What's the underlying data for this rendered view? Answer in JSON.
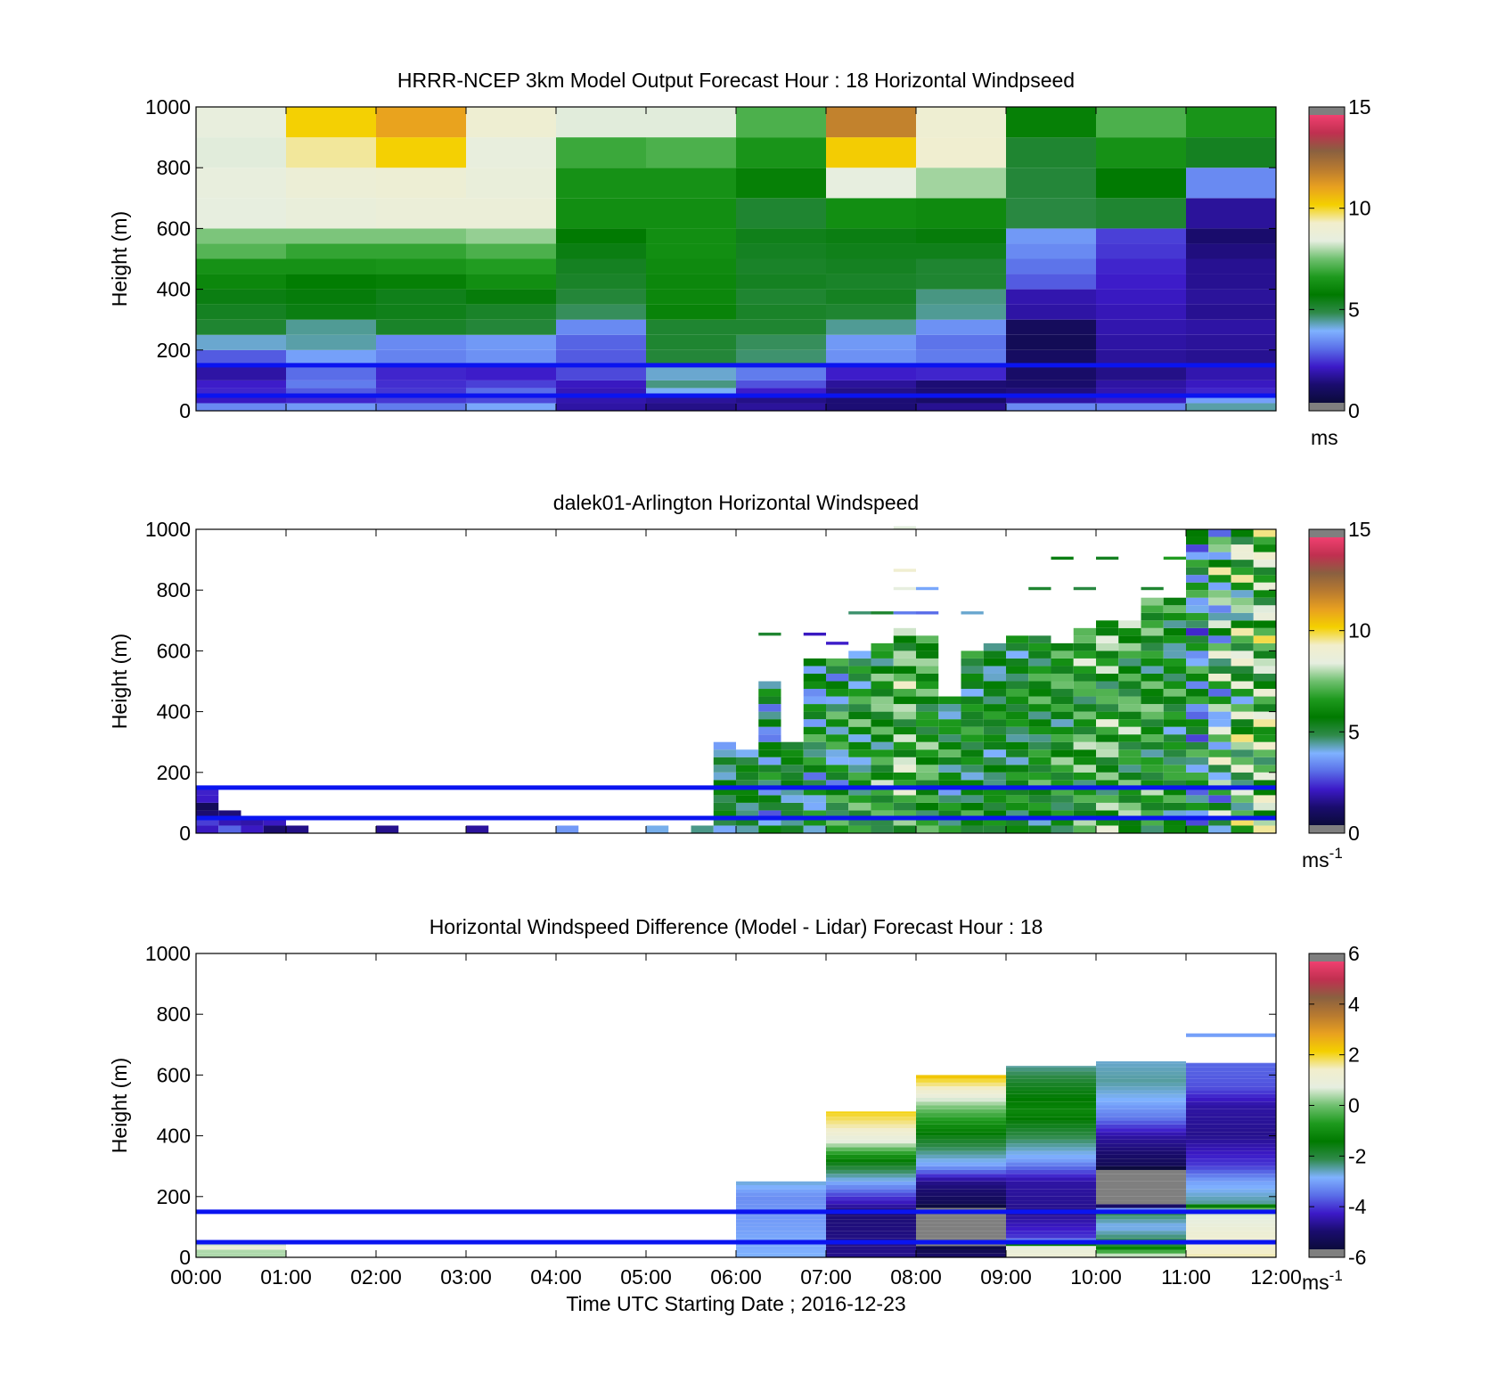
{
  "colors": {
    "reference_line": "#0a14f0",
    "frame": "#000000",
    "cbar_stops": [
      "#7f7f7f",
      "#0b0b3b",
      "#1a0c6e",
      "#3c1ac8",
      "#5a6ee8",
      "#7fb2ff",
      "#2f8a4a",
      "#007a00",
      "#1e9a1e",
      "#6fc06f",
      "#e6eee0",
      "#f2eecc",
      "#f4d000",
      "#e8a020",
      "#b87a30",
      "#8a6040",
      "#c03050",
      "#f04070",
      "#7f7f7f"
    ]
  },
  "chart_data": [
    {
      "type": "heatmap",
      "title": "HRRR-NCEP 3km Model Output   Forecast Hour : 18 Horizontal Windpseed",
      "ylabel": "Height (m)",
      "xlabel": "",
      "ylim": [
        0,
        1000
      ],
      "yticks": [
        "0",
        "200",
        "400",
        "600",
        "800",
        "1000"
      ],
      "xlim": [
        0,
        12
      ],
      "xticks": [],
      "colorbar": {
        "min": 0,
        "max": 15,
        "ticks": [
          "0",
          "5",
          "10",
          "15"
        ],
        "unit": "ms"
      },
      "reference_lines_m": [
        50,
        150
      ],
      "x_hours": [
        0,
        1,
        2,
        3,
        4,
        5,
        6,
        7,
        8,
        9,
        10,
        11
      ],
      "heights_m": [
        0,
        25,
        50,
        75,
        100,
        150,
        200,
        250,
        300,
        350,
        400,
        450,
        500,
        550,
        600,
        700,
        800,
        900,
        1000
      ],
      "values": [
        [
          3.2,
          3.4,
          3.0,
          3.6,
          1.5,
          1.2,
          1.4,
          1.0,
          1.3,
          3.2,
          3.1,
          4.2
        ],
        [
          1.8,
          2.0,
          2.2,
          2.4,
          1.6,
          1.4,
          1.2,
          1.0,
          0.8,
          1.5,
          1.8,
          3.5
        ],
        [
          2.0,
          2.6,
          2.2,
          2.8,
          1.7,
          3.8,
          1.9,
          1.2,
          1.0,
          1.1,
          1.6,
          2.0
        ],
        [
          1.9,
          3.0,
          2.1,
          2.3,
          1.8,
          4.4,
          2.5,
          1.4,
          1.0,
          0.9,
          1.5,
          1.8
        ],
        [
          1.5,
          2.8,
          2.0,
          1.9,
          2.4,
          4.0,
          3.0,
          1.9,
          2.0,
          0.8,
          1.2,
          1.6
        ],
        [
          2.6,
          3.5,
          3.1,
          3.3,
          2.6,
          4.9,
          4.5,
          3.3,
          3.0,
          0.7,
          1.4,
          1.3
        ],
        [
          4.0,
          4.2,
          3.2,
          3.4,
          2.7,
          5.0,
          4.6,
          3.4,
          2.9,
          0.5,
          1.5,
          1.4
        ],
        [
          5.0,
          4.3,
          5.1,
          4.9,
          3.2,
          5.0,
          5.0,
          4.3,
          3.3,
          0.6,
          1.6,
          1.5
        ],
        [
          5.2,
          5.4,
          5.3,
          5.1,
          4.6,
          5.9,
          5.1,
          5.0,
          4.3,
          1.5,
          1.7,
          1.3
        ],
        [
          5.4,
          5.5,
          5.3,
          5.5,
          4.9,
          6.0,
          5.0,
          5.2,
          4.4,
          1.6,
          1.8,
          1.4
        ],
        [
          6.0,
          5.7,
          5.8,
          6.2,
          5.1,
          6.0,
          5.2,
          5.1,
          5.0,
          2.6,
          1.9,
          1.3
        ],
        [
          6.3,
          6.3,
          6.4,
          6.6,
          5.2,
          6.1,
          5.1,
          5.2,
          5.0,
          2.9,
          2.0,
          1.3
        ],
        [
          7.2,
          6.8,
          6.8,
          7.1,
          5.4,
          6.2,
          5.2,
          5.3,
          5.3,
          3.2,
          2.2,
          1.1
        ],
        [
          7.6,
          7.6,
          7.6,
          7.8,
          5.6,
          6.2,
          5.3,
          5.4,
          5.5,
          3.4,
          2.3,
          0.9
        ],
        [
          8.5,
          8.7,
          8.8,
          8.8,
          6.2,
          6.2,
          5.0,
          6.2,
          6.1,
          4.8,
          5.0,
          1.4
        ],
        [
          8.6,
          8.9,
          9.0,
          8.7,
          6.3,
          6.3,
          5.8,
          8.5,
          7.9,
          4.9,
          5.6,
          3.2
        ],
        [
          8.4,
          9.6,
          10.3,
          8.6,
          6.9,
          7.1,
          6.4,
          10.4,
          9.2,
          5.0,
          6.3,
          5.2
        ],
        [
          8.6,
          10.3,
          11.2,
          9.1,
          8.4,
          8.4,
          7.1,
          12.0,
          9.1,
          5.8,
          7.1,
          6.4
        ]
      ]
    },
    {
      "type": "heatmap",
      "title": "dalek01-Arlington  Horizontal Windspeed",
      "ylabel": "Height (m)",
      "xlabel": "",
      "ylim": [
        0,
        1000
      ],
      "yticks": [
        "0",
        "200",
        "400",
        "600",
        "800",
        "1000"
      ],
      "xlim": [
        0,
        12
      ],
      "xticks": [],
      "colorbar": {
        "min": 0,
        "max": 15,
        "ticks": [
          "0",
          "5",
          "10",
          "15"
        ],
        "unit": "ms",
        "unit_exp": "-1"
      },
      "reference_lines_m": [
        50,
        150
      ],
      "x_step_h": 0.25,
      "height_step_m": 25,
      "columns": [
        {
          "x": 0.0,
          "top": 140,
          "base": 1.8,
          "amp": 0.8
        },
        {
          "x": 0.25,
          "top": 60,
          "base": 1.6,
          "amp": 0.6
        },
        {
          "x": 0.5,
          "top": 40,
          "base": 1.4,
          "amp": 0.5
        },
        {
          "x": 0.75,
          "top": 30,
          "base": 1.2,
          "amp": 0.4
        },
        {
          "x": 1.0,
          "top": 20,
          "base": 1.5,
          "amp": 0.3
        },
        {
          "x": 2.0,
          "top": 20,
          "base": 1.6,
          "amp": 0.3
        },
        {
          "x": 3.0,
          "top": 20,
          "base": 1.8,
          "amp": 0.3
        },
        {
          "x": 4.0,
          "top": 20,
          "base": 3.2,
          "amp": 0.3
        },
        {
          "x": 5.0,
          "top": 20,
          "base": 3.0,
          "amp": 0.3
        },
        {
          "x": 5.5,
          "top": 20,
          "base": 4.0,
          "amp": 0.3
        },
        {
          "x": 5.75,
          "top": 300,
          "base": 4.8,
          "amp": 0.9
        },
        {
          "x": 6.0,
          "top": 260,
          "base": 4.9,
          "amp": 0.8
        },
        {
          "x": 6.25,
          "top": 500,
          "base": 4.6,
          "amp": 1.6
        },
        {
          "x": 6.5,
          "top": 300,
          "base": 5.0,
          "amp": 0.7
        },
        {
          "x": 6.75,
          "top": 560,
          "base": 5.1,
          "amp": 1.8
        },
        {
          "x": 7.0,
          "top": 560,
          "base": 5.3,
          "amp": 1.9
        },
        {
          "x": 7.25,
          "top": 580,
          "base": 5.6,
          "amp": 1.7
        },
        {
          "x": 7.5,
          "top": 620,
          "base": 6.2,
          "amp": 1.6
        },
        {
          "x": 7.75,
          "top": 660,
          "base": 7.0,
          "amp": 1.8
        },
        {
          "x": 8.0,
          "top": 640,
          "base": 6.3,
          "amp": 1.4
        },
        {
          "x": 8.25,
          "top": 440,
          "base": 5.4,
          "amp": 1.5
        },
        {
          "x": 8.5,
          "top": 600,
          "base": 5.5,
          "amp": 1.2
        },
        {
          "x": 8.75,
          "top": 620,
          "base": 5.2,
          "amp": 1.0
        },
        {
          "x": 9.0,
          "top": 640,
          "base": 5.4,
          "amp": 1.1
        },
        {
          "x": 9.25,
          "top": 640,
          "base": 5.8,
          "amp": 1.3
        },
        {
          "x": 9.5,
          "top": 620,
          "base": 6.0,
          "amp": 1.4
        },
        {
          "x": 9.75,
          "top": 660,
          "base": 6.4,
          "amp": 1.6
        },
        {
          "x": 10.0,
          "top": 680,
          "base": 6.6,
          "amp": 1.8
        },
        {
          "x": 10.25,
          "top": 680,
          "base": 6.3,
          "amp": 1.6
        },
        {
          "x": 10.5,
          "top": 760,
          "base": 6.1,
          "amp": 1.5
        },
        {
          "x": 10.75,
          "top": 760,
          "base": 5.6,
          "amp": 1.4
        },
        {
          "x": 11.0,
          "top": 1000,
          "base": 4.8,
          "amp": 2.2
        },
        {
          "x": 11.25,
          "top": 1000,
          "base": 6.0,
          "amp": 3.0
        },
        {
          "x": 11.5,
          "top": 1000,
          "base": 6.8,
          "amp": 2.6
        },
        {
          "x": 11.75,
          "top": 1000,
          "base": 7.2,
          "amp": 2.2
        }
      ],
      "sparse_streaks": [
        {
          "x": 6.25,
          "y": 650,
          "v": 5.0
        },
        {
          "x": 6.75,
          "y": 650,
          "v": 1.8
        },
        {
          "x": 7.0,
          "y": 620,
          "v": 1.9
        },
        {
          "x": 7.25,
          "y": 720,
          "v": 4.5
        },
        {
          "x": 7.5,
          "y": 720,
          "v": 5.0
        },
        {
          "x": 7.75,
          "y": 720,
          "v": 3.0
        },
        {
          "x": 7.75,
          "y": 800,
          "v": 8.5
        },
        {
          "x": 8.0,
          "y": 720,
          "v": 2.8
        },
        {
          "x": 8.0,
          "y": 800,
          "v": 3.6
        },
        {
          "x": 8.5,
          "y": 720,
          "v": 4.0
        },
        {
          "x": 9.25,
          "y": 800,
          "v": 5.0
        },
        {
          "x": 9.5,
          "y": 900,
          "v": 5.4
        },
        {
          "x": 9.75,
          "y": 800,
          "v": 4.8
        },
        {
          "x": 10.0,
          "y": 900,
          "v": 5.2
        },
        {
          "x": 10.5,
          "y": 800,
          "v": 5.0
        },
        {
          "x": 10.75,
          "y": 900,
          "v": 6.6
        },
        {
          "x": 7.75,
          "y": 1000,
          "v": 8.4
        },
        {
          "x": 7.75,
          "y": 860,
          "v": 9.2
        }
      ]
    },
    {
      "type": "heatmap",
      "title": "Horizontal Windspeed Difference (Model - Lidar) Forecast Hour : 18",
      "ylabel": "Height (m)",
      "xlabel": "Time UTC  Starting Date ; 2016-12-23",
      "ylim": [
        0,
        1000
      ],
      "yticks": [
        "0",
        "200",
        "400",
        "600",
        "800",
        "1000"
      ],
      "xlim": [
        0,
        12
      ],
      "xticks": [
        "00:00",
        "01:00",
        "02:00",
        "03:00",
        "04:00",
        "05:00",
        "06:00",
        "07:00",
        "08:00",
        "09:00",
        "10:00",
        "11:00",
        "12:00"
      ],
      "colorbar": {
        "min": -6,
        "max": 6,
        "ticks": [
          "-6",
          "-4",
          "-2",
          "0",
          "2",
          "4",
          "6"
        ],
        "unit": "ms",
        "unit_exp": "-1"
      },
      "reference_lines_m": [
        50,
        150
      ],
      "height_step_m": 25,
      "columns": [
        {
          "x": 0,
          "top": 50,
          "profile": [
            {
              "h": 25,
              "v": 1.2
            },
            {
              "h": 50,
              "v": 0.4
            }
          ]
        },
        {
          "x": 6,
          "top": 250,
          "profile": [
            {
              "h": 0,
              "v": -3.0
            },
            {
              "h": 100,
              "v": -3.2
            },
            {
              "h": 200,
              "v": -3.4
            },
            {
              "h": 250,
              "v": -2.8
            }
          ]
        },
        {
          "x": 7,
          "top": 480,
          "profile": [
            {
              "h": 0,
              "v": -5.0
            },
            {
              "h": 150,
              "v": -5.2
            },
            {
              "h": 200,
              "v": -4.2
            },
            {
              "h": 250,
              "v": -3.0
            },
            {
              "h": 300,
              "v": -2.0
            },
            {
              "h": 350,
              "v": -0.4
            },
            {
              "h": 380,
              "v": 0.8
            },
            {
              "h": 430,
              "v": 1.6
            },
            {
              "h": 480,
              "v": 2.2
            }
          ]
        },
        {
          "x": 8,
          "top": 600,
          "profile": [
            {
              "h": 0,
              "v": -5.3
            },
            {
              "h": 50,
              "v": -6.2
            },
            {
              "h": 160,
              "v": -6.2
            },
            {
              "h": 180,
              "v": -5.6
            },
            {
              "h": 250,
              "v": -5.0
            },
            {
              "h": 300,
              "v": -3.2
            },
            {
              "h": 380,
              "v": -2.0
            },
            {
              "h": 450,
              "v": -0.8
            },
            {
              "h": 500,
              "v": 0.2
            },
            {
              "h": 540,
              "v": 1.2
            },
            {
              "h": 580,
              "v": 2.0
            },
            {
              "h": 600,
              "v": 2.6
            }
          ]
        },
        {
          "x": 9,
          "top": 630,
          "profile": [
            {
              "h": 0,
              "v": 1.2
            },
            {
              "h": 30,
              "v": 1.0
            },
            {
              "h": 60,
              "v": -4.2
            },
            {
              "h": 150,
              "v": -5.0
            },
            {
              "h": 250,
              "v": -4.8
            },
            {
              "h": 320,
              "v": -3.2
            },
            {
              "h": 400,
              "v": -2.2
            },
            {
              "h": 480,
              "v": -1.2
            },
            {
              "h": 560,
              "v": -1.8
            },
            {
              "h": 630,
              "v": -2.6
            }
          ]
        },
        {
          "x": 10,
          "top": 645,
          "profile": [
            {
              "h": 0,
              "v": 1.0
            },
            {
              "h": 40,
              "v": -2.0
            },
            {
              "h": 100,
              "v": -3.0
            },
            {
              "h": 150,
              "v": -2.2
            },
            {
              "h": 170,
              "v": -5.6
            },
            {
              "h": 180,
              "v": -6.2
            },
            {
              "h": 290,
              "v": -6.2
            },
            {
              "h": 300,
              "v": -5.6
            },
            {
              "h": 400,
              "v": -4.8
            },
            {
              "h": 460,
              "v": -3.6
            },
            {
              "h": 520,
              "v": -3.0
            },
            {
              "h": 580,
              "v": -2.6
            },
            {
              "h": 645,
              "v": -2.8
            }
          ]
        },
        {
          "x": 11,
          "top": 640,
          "profile": [
            {
              "h": 0,
              "v": 1.6
            },
            {
              "h": 80,
              "v": 1.2
            },
            {
              "h": 150,
              "v": 0.6
            },
            {
              "h": 180,
              "v": -2.6
            },
            {
              "h": 250,
              "v": -3.2
            },
            {
              "h": 300,
              "v": -4.2
            },
            {
              "h": 400,
              "v": -5.0
            },
            {
              "h": 500,
              "v": -4.8
            },
            {
              "h": 560,
              "v": -4.0
            },
            {
              "h": 640,
              "v": -3.8
            }
          ]
        }
      ],
      "sparse_streaks": [
        {
          "x": 11,
          "y": 725,
          "v": -3.2
        }
      ]
    }
  ]
}
